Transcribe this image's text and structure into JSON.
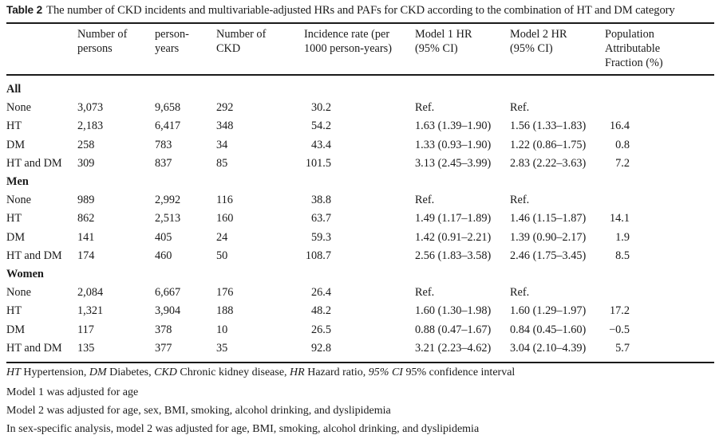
{
  "caption": {
    "label": "Table 2",
    "text": "The number of CKD incidents and multivariable-adjusted HRs and PAFs for CKD according to the combination of HT and DM category"
  },
  "headers": [
    {
      "lines": [
        "Number of",
        "persons"
      ]
    },
    {
      "lines": [
        "person-",
        "years"
      ]
    },
    {
      "lines": [
        "Number of",
        "CKD"
      ]
    },
    {
      "lines": [
        "Incidence rate (per",
        "1000 person-years)"
      ]
    },
    {
      "lines": [
        "Model 1 HR",
        "(95% CI)"
      ]
    },
    {
      "lines": [
        "Model 2 HR",
        "(95% CI)"
      ]
    },
    {
      "lines": [
        "Population",
        "Attributable",
        "Fraction (%)"
      ]
    }
  ],
  "sections": [
    {
      "title": "All",
      "rows": [
        {
          "category": "None",
          "persons": "3,073",
          "person_years": "9,658",
          "ckd": "292",
          "incidence": "30.2",
          "model1": "Ref.",
          "model2": "Ref.",
          "paf": ""
        },
        {
          "category": "HT",
          "persons": "2,183",
          "person_years": "6,417",
          "ckd": "348",
          "incidence": "54.2",
          "model1": "1.63 (1.39–1.90)",
          "model2": "1.56 (1.33–1.83)",
          "paf": "16.4"
        },
        {
          "category": "DM",
          "persons": "258",
          "person_years": "783",
          "ckd": "34",
          "incidence": "43.4",
          "model1": "1.33 (0.93–1.90)",
          "model2": "1.22 (0.86–1.75)",
          "paf": "0.8"
        },
        {
          "category": "HT and DM",
          "persons": "309",
          "person_years": "837",
          "ckd": "85",
          "incidence": "101.5",
          "model1": "3.13 (2.45–3.99)",
          "model2": "2.83 (2.22–3.63)",
          "paf": "7.2"
        }
      ]
    },
    {
      "title": "Men",
      "rows": [
        {
          "category": "None",
          "persons": "989",
          "person_years": "2,992",
          "ckd": "116",
          "incidence": "38.8",
          "model1": "Ref.",
          "model2": "Ref.",
          "paf": ""
        },
        {
          "category": "HT",
          "persons": "862",
          "person_years": "2,513",
          "ckd": "160",
          "incidence": "63.7",
          "model1": "1.49 (1.17–1.89)",
          "model2": "1.46 (1.15–1.87)",
          "paf": "14.1"
        },
        {
          "category": "DM",
          "persons": "141",
          "person_years": "405",
          "ckd": "24",
          "incidence": "59.3",
          "model1": "1.42 (0.91–2.21)",
          "model2": "1.39 (0.90–2.17)",
          "paf": "1.9"
        },
        {
          "category": "HT and DM",
          "persons": "174",
          "person_years": "460",
          "ckd": "50",
          "incidence": "108.7",
          "model1": "2.56 (1.83–3.58)",
          "model2": "2.46 (1.75–3.45)",
          "paf": "8.5"
        }
      ]
    },
    {
      "title": "Women",
      "rows": [
        {
          "category": "None",
          "persons": "2,084",
          "person_years": "6,667",
          "ckd": "176",
          "incidence": "26.4",
          "model1": "Ref.",
          "model2": "Ref.",
          "paf": ""
        },
        {
          "category": "HT",
          "persons": "1,321",
          "person_years": "3,904",
          "ckd": "188",
          "incidence": "48.2",
          "model1": "1.60 (1.30–1.98)",
          "model2": "1.60 (1.29–1.97)",
          "paf": "17.2"
        },
        {
          "category": "DM",
          "persons": "117",
          "person_years": "378",
          "ckd": "10",
          "incidence": "26.5",
          "model1": "0.88 (0.47–1.67)",
          "model2": "0.84 (0.45–1.60)",
          "paf": "−0.5"
        },
        {
          "category": "HT and DM",
          "persons": "135",
          "person_years": "377",
          "ckd": "35",
          "incidence": "92.8",
          "model1": "3.21 (2.23–4.62)",
          "model2": "3.04 (2.10–4.39)",
          "paf": "5.7"
        }
      ]
    }
  ],
  "footnotes": {
    "abbreviations": [
      {
        "abbr": "HT",
        "text": " Hypertension, "
      },
      {
        "abbr": "DM",
        "text": " Diabetes, "
      },
      {
        "abbr": "CKD",
        "text": " Chronic kidney disease, "
      },
      {
        "abbr": "HR",
        "text": " Hazard ratio, "
      },
      {
        "abbr": "95% CI",
        "text": " 95% confidence interval"
      }
    ],
    "lines": [
      "Model 1 was adjusted for age",
      "Model 2 was adjusted for age, sex, BMI, smoking, alcohol drinking, and dyslipidemia",
      "In sex-specific analysis, model 2 was adjusted for age, BMI, smoking, alcohol drinking, and dyslipidemia"
    ]
  }
}
